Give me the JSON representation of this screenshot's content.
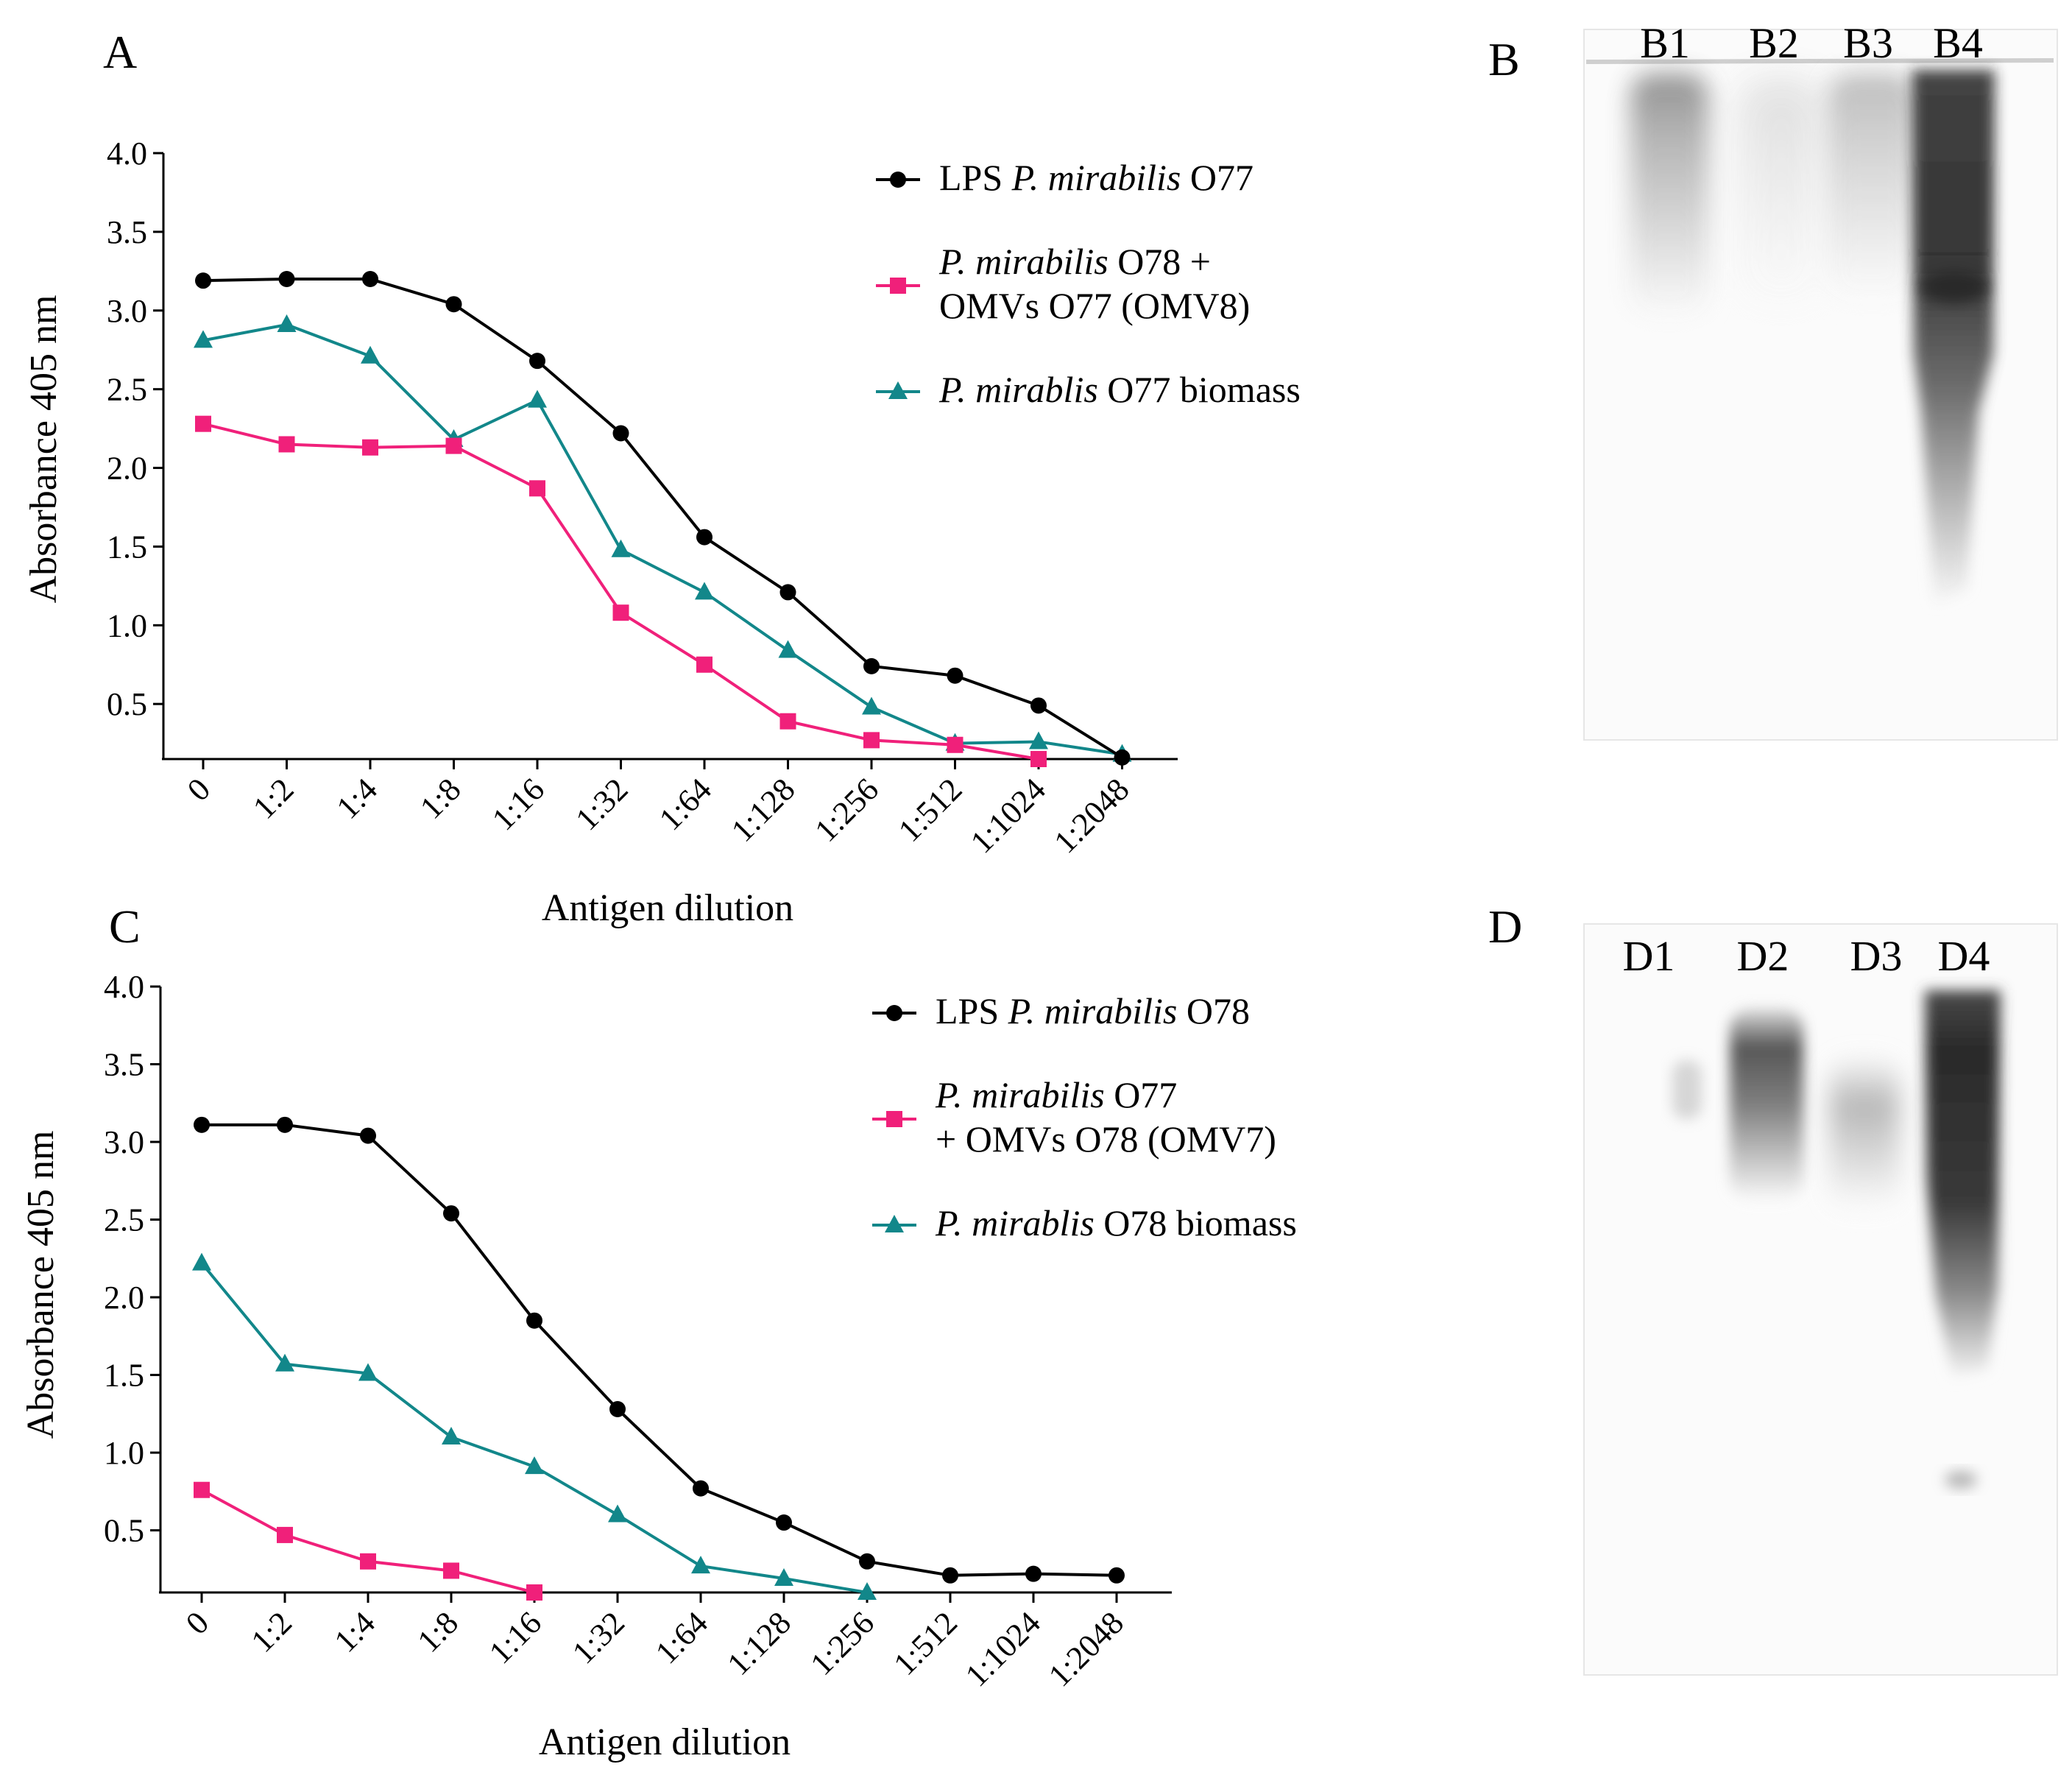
{
  "panels": {
    "A": "A",
    "B": "B",
    "C": "C",
    "D": "D"
  },
  "colors": {
    "black_series": "#000000",
    "pink_series": "#f0207a",
    "teal_series": "#12878a"
  },
  "chart_data": [
    {
      "panel": "A",
      "type": "line",
      "xlabel": "Antigen dilution",
      "ylabel": "Absorbance 405 nm",
      "categories": [
        "0",
        "1:2",
        "1:4",
        "1:8",
        "1:16",
        "1:32",
        "1:64",
        "1:128",
        "1:256",
        "1:512",
        "1:1024",
        "1:2048"
      ],
      "ylim": [
        0.15,
        4.0
      ],
      "yticks": [
        "0.5",
        "1.0",
        "1.5",
        "2.0",
        "2.5",
        "3.0",
        "3.5",
        "4.0"
      ],
      "legend_position": "top-right",
      "series": [
        {
          "name": "LPS P. mirabilis O77",
          "legend_lines": [
            [
              {
                "t": "LPS ",
                "i": false
              },
              {
                "t": "P. mirabilis",
                "i": true
              },
              {
                "t": " O77",
                "i": false
              }
            ]
          ],
          "marker": "circle",
          "color": "#000000",
          "values": [
            3.19,
            3.2,
            3.2,
            3.04,
            2.68,
            2.22,
            1.56,
            1.21,
            0.74,
            0.68,
            0.49,
            0.16
          ]
        },
        {
          "name": "P. mirabilis O78 + OMVs O77 (OMV8)",
          "legend_lines": [
            [
              {
                "t": "P. mirabilis",
                "i": true
              },
              {
                "t": " O78 +",
                "i": false
              }
            ],
            [
              {
                "t": "OMVs O77 (OMV8)",
                "i": false
              }
            ]
          ],
          "marker": "square",
          "color": "#f0207a",
          "values": [
            2.28,
            2.15,
            2.13,
            2.14,
            1.87,
            1.08,
            0.75,
            0.39,
            0.27,
            0.24,
            0.15,
            null
          ]
        },
        {
          "name": "P. mirablis O77 biomass",
          "legend_lines": [
            [
              {
                "t": "P. mirablis",
                "i": true
              },
              {
                "t": " O77 biomass",
                "i": false
              }
            ]
          ],
          "marker": "triangle",
          "color": "#12878a",
          "values": [
            2.81,
            2.91,
            2.71,
            2.18,
            2.43,
            1.48,
            1.21,
            0.84,
            0.48,
            0.25,
            0.26,
            0.18
          ]
        }
      ]
    },
    {
      "panel": "C",
      "type": "line",
      "xlabel": "Antigen dilution",
      "ylabel": "Absorbance 405 nm",
      "categories": [
        "0",
        "1:2",
        "1:4",
        "1:8",
        "1:16",
        "1:32",
        "1:64",
        "1:128",
        "1:256",
        "1:512",
        "1:1024",
        "1:2048"
      ],
      "ylim": [
        0.1,
        4.0
      ],
      "yticks": [
        "0.5",
        "1.0",
        "1.5",
        "2.0",
        "2.5",
        "3.0",
        "3.5",
        "4.0"
      ],
      "legend_position": "top-right",
      "series": [
        {
          "name": "LPS P. mirabilis O78",
          "legend_lines": [
            [
              {
                "t": "LPS ",
                "i": false
              },
              {
                "t": "P. mirabilis",
                "i": true
              },
              {
                "t": " O78",
                "i": false
              }
            ]
          ],
          "marker": "circle",
          "color": "#000000",
          "values": [
            3.11,
            3.11,
            3.04,
            2.54,
            1.85,
            1.28,
            0.77,
            0.55,
            0.3,
            0.21,
            0.22,
            0.21
          ]
        },
        {
          "name": "P. mirabilis O77 + OMVs O78 (OMV7)",
          "legend_lines": [
            [
              {
                "t": "P. mirabilis",
                "i": true
              },
              {
                "t": " O77",
                "i": false
              }
            ],
            [
              {
                "t": "+ OMVs O78 (OMV7)",
                "i": false
              }
            ]
          ],
          "marker": "square",
          "color": "#f0207a",
          "values": [
            0.76,
            0.47,
            0.3,
            0.24,
            0.1,
            null,
            null,
            null,
            null,
            null,
            null,
            null
          ]
        },
        {
          "name": "P. mirablis O78 biomass",
          "legend_lines": [
            [
              {
                "t": "P. mirablis",
                "i": true
              },
              {
                "t": " O78 biomass",
                "i": false
              }
            ]
          ],
          "marker": "triangle",
          "color": "#12878a",
          "values": [
            2.22,
            1.57,
            1.51,
            1.1,
            0.91,
            0.6,
            0.27,
            0.19,
            0.1,
            null,
            null,
            null
          ]
        }
      ]
    }
  ],
  "gels": {
    "B": {
      "lanes": [
        "B1",
        "B2",
        "B3",
        "B4"
      ]
    },
    "D": {
      "lanes": [
        "D1",
        "D2",
        "D3",
        "D4"
      ]
    }
  }
}
